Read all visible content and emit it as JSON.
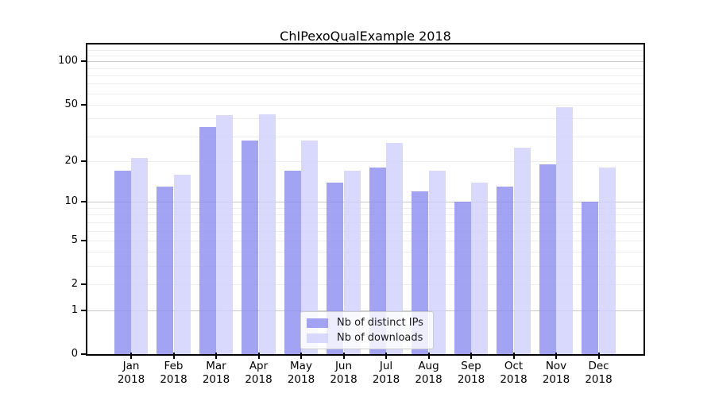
{
  "figure": {
    "background": "#ffffff",
    "plot_background": "#ffffff",
    "axis_color": "#000000"
  },
  "chart_data": {
    "type": "bar",
    "title": "ChIPexoQualExample 2018",
    "categories": [
      "Jan 2018",
      "Feb 2018",
      "Mar 2018",
      "Apr 2018",
      "May 2018",
      "Jun 2018",
      "Jul 2018",
      "Aug 2018",
      "Sep 2018",
      "Oct 2018",
      "Nov 2018",
      "Dec 2018"
    ],
    "x_tick_months": [
      "Jan",
      "Feb",
      "Mar",
      "Apr",
      "May",
      "Jun",
      "Jul",
      "Aug",
      "Sep",
      "Oct",
      "Nov",
      "Dec"
    ],
    "x_tick_year": "2018",
    "series": [
      {
        "name": "Nb of distinct IPs",
        "color": "#8c8cf0",
        "values": [
          17,
          13,
          35,
          28,
          17,
          14,
          18,
          12,
          10,
          13,
          19,
          10
        ]
      },
      {
        "name": "Nb of downloads",
        "color": "#cfcffd",
        "values": [
          21,
          16,
          42,
          43,
          28,
          17,
          27,
          17,
          14,
          25,
          48,
          18
        ]
      }
    ],
    "y_axis": {
      "scale": "log1p",
      "tick_values": [
        100,
        50,
        20,
        10,
        5,
        2,
        1,
        0
      ],
      "tick_labels": [
        "100",
        "50",
        "20",
        "10",
        "5",
        "2",
        "1",
        "0"
      ],
      "ymax": 131
    },
    "grid": {
      "major_values": [
        1,
        10,
        100
      ],
      "minor_values": [
        2,
        3,
        4,
        5,
        6,
        7,
        8,
        9,
        20,
        30,
        40,
        50,
        60,
        70,
        80,
        90,
        110,
        120,
        130
      ],
      "major_color": "#c9c9c9",
      "minor_color": "#eeeeee"
    },
    "legend": {
      "position": "bottom-center",
      "entries": [
        "Nb of distinct IPs",
        "Nb of downloads"
      ]
    }
  }
}
